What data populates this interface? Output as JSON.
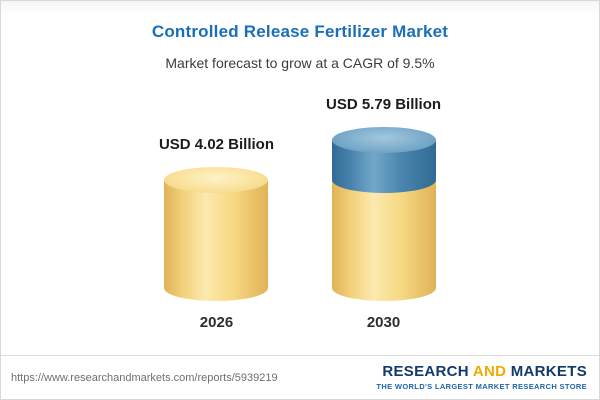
{
  "chart_data": {
    "type": "bar",
    "title": "Controlled Release Fertilizer Market",
    "subtitle": "Market forecast to grow at a CAGR of 9.5%",
    "categories": [
      "2026",
      "2030"
    ],
    "values": [
      4.02,
      5.79
    ],
    "value_labels": [
      "USD 4.02 Billion",
      "USD 5.79 Billion"
    ],
    "unit": "USD Billion",
    "cagr": "9.5%",
    "ylim": [
      0,
      6
    ],
    "legend": "none",
    "grid": "off",
    "colors": {
      "bar_base": "#F5D57E",
      "bar_growth": "#4A81A9",
      "title": "#1A6FBA"
    }
  },
  "footer": {
    "url": "https://www.researchandmarkets.com/reports/5939219",
    "logo": {
      "word1": "RESEARCH",
      "word2": "AND",
      "word3": "MARKETS",
      "tagline": "THE WORLD'S LARGEST MARKET RESEARCH STORE"
    }
  }
}
